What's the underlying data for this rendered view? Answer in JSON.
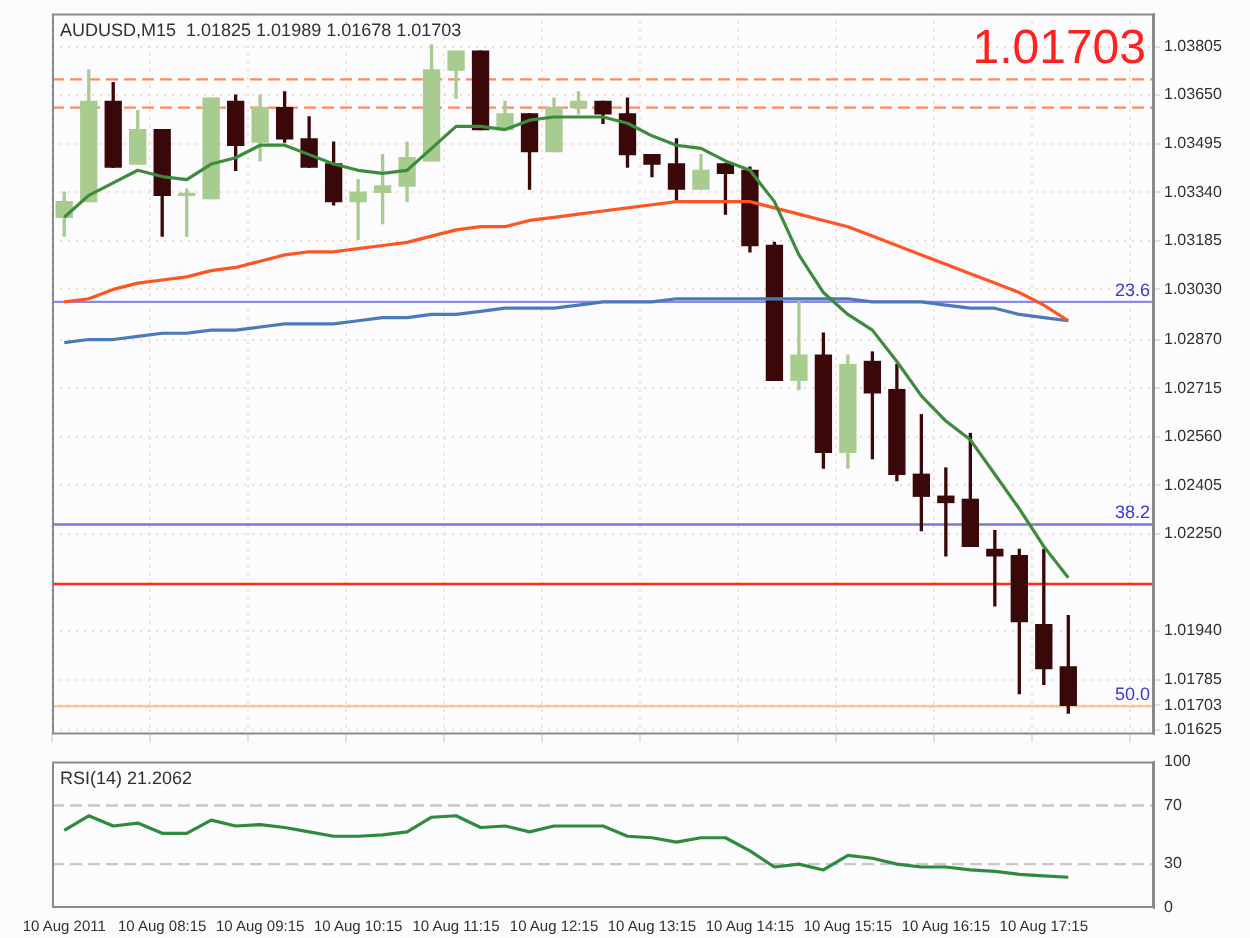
{
  "chart_data": [
    {
      "type": "candlestick",
      "title": "AUDUSD,M15  1.01825 1.01989 1.01678 1.01703",
      "categories": [
        null,
        null,
        null,
        null,
        null,
        null,
        null,
        null,
        null,
        null,
        null,
        null,
        null,
        null,
        null,
        null,
        null,
        null,
        null,
        null,
        null,
        null,
        null,
        null,
        null,
        null,
        null,
        null,
        null,
        null,
        null,
        null,
        null,
        null,
        null,
        null,
        null,
        null,
        null,
        null,
        null,
        null
      ],
      "ohlc": [
        [
          1.0326,
          1.0334,
          1.032,
          1.0331
        ],
        [
          1.0331,
          1.0373,
          1.0331,
          1.0363
        ],
        [
          1.0363,
          1.0369,
          1.0342,
          1.0342
        ],
        [
          1.0343,
          1.036,
          1.0343,
          1.0354
        ],
        [
          1.0354,
          1.0354,
          1.032,
          1.0333
        ],
        [
          1.0333,
          1.0335,
          1.032,
          1.0333
        ],
        [
          1.0332,
          1.0364,
          1.0332,
          1.0364
        ],
        [
          1.0363,
          1.0365,
          1.0341,
          1.0349
        ],
        [
          1.035,
          1.0365,
          1.0344,
          1.0361
        ],
        [
          1.0361,
          1.0366,
          1.035,
          1.0351
        ],
        [
          1.0351,
          1.0358,
          1.0342,
          1.0342
        ],
        [
          1.0343,
          1.035,
          1.033,
          1.0331
        ],
        [
          1.0331,
          1.0338,
          1.0319,
          1.0334
        ],
        [
          1.0334,
          1.0346,
          1.0324,
          1.0336
        ],
        [
          1.0336,
          1.035,
          1.0331,
          1.0345
        ],
        [
          1.0344,
          1.0381,
          1.0344,
          1.0373
        ],
        [
          1.0373,
          1.0379,
          1.0364,
          1.0379
        ],
        [
          1.0379,
          1.0379,
          1.0354,
          1.0354
        ],
        [
          1.0354,
          1.0363,
          1.0354,
          1.0359
        ],
        [
          1.0359,
          1.0359,
          1.0335,
          1.0347
        ],
        [
          1.0347,
          1.0364,
          1.0347,
          1.0361
        ],
        [
          1.0361,
          1.0366,
          1.0359,
          1.0363
        ],
        [
          1.0363,
          1.0363,
          1.0356,
          1.0359
        ],
        [
          1.0359,
          1.0364,
          1.0342,
          1.0346
        ],
        [
          1.0346,
          1.0346,
          1.0339,
          1.0343
        ],
        [
          1.0343,
          1.0351,
          1.0331,
          1.0335
        ],
        [
          1.0335,
          1.0346,
          1.0335,
          1.0341
        ],
        [
          1.0343,
          1.0343,
          1.0327,
          1.034
        ],
        [
          1.0341,
          1.0342,
          1.0315,
          1.0317
        ],
        [
          1.0317,
          1.0318,
          1.0274,
          1.0274
        ],
        [
          1.0274,
          1.0299,
          1.0271,
          1.0282
        ],
        [
          1.0282,
          1.0289,
          1.0246,
          1.0251
        ],
        [
          1.0251,
          1.0282,
          1.0246,
          1.0279
        ],
        [
          1.028,
          1.0283,
          1.0249,
          1.027
        ],
        [
          1.0271,
          1.0279,
          1.0242,
          1.0244
        ],
        [
          1.0244,
          1.0263,
          1.0226,
          1.0237
        ],
        [
          1.0237,
          1.0246,
          1.0218,
          1.0235
        ],
        [
          1.0236,
          1.0257,
          1.0221,
          1.0221
        ],
        [
          1.022,
          1.0226,
          1.0202,
          1.0218
        ],
        [
          1.0218,
          1.022,
          1.0174,
          1.0197
        ],
        [
          1.0196,
          1.022,
          1.0177,
          1.0182
        ],
        [
          1.01825,
          1.01989,
          1.01678,
          1.01703
        ]
      ],
      "colors": [
        "#a8cc90",
        "#a8cc90",
        "#3a0808",
        "#a8cc90",
        "#3a0808",
        "#a8cc90",
        "#a8cc90",
        "#3a0808",
        "#a8cc90",
        "#3a0808",
        "#3a0808",
        "#3a0808",
        "#a8cc90",
        "#a8cc90",
        "#a8cc90",
        "#a8cc90",
        "#a8cc90",
        "#3a0808",
        "#a8cc90",
        "#3a0808",
        "#a8cc90",
        "#a8cc90",
        "#3a0808",
        "#3a0808",
        "#3a0808",
        "#3a0808",
        "#a8cc90",
        "#3a0808",
        "#3a0808",
        "#3a0808",
        "#a8cc90",
        "#3a0808",
        "#a8cc90",
        "#3a0808",
        "#3a0808",
        "#3a0808",
        "#3a0808",
        "#3a0808",
        "#3a0808",
        "#3a0808",
        "#3a0808",
        "#3a0808"
      ],
      "series": [
        {
          "type": "line",
          "color": "#3c8c3c",
          "values": [
            1.0326,
            1.0333,
            1.0337,
            1.0341,
            1.0339,
            1.0338,
            1.0343,
            1.0345,
            1.0349,
            1.0349,
            1.0346,
            1.0343,
            1.0341,
            1.034,
            1.0341,
            1.0348,
            1.0355,
            1.0355,
            1.0354,
            1.0357,
            1.0358,
            1.0358,
            1.0358,
            1.0356,
            1.0352,
            1.0349,
            1.0348,
            1.0344,
            1.0341,
            1.0331,
            1.0314,
            1.0302,
            1.0295,
            1.029,
            1.028,
            1.0269,
            1.0261,
            1.0255,
            1.0244,
            1.0233,
            1.0221,
            1.0211
          ]
        },
        {
          "type": "line",
          "color": "#ff5522",
          "values": [
            1.0299,
            1.03,
            1.0303,
            1.0305,
            1.0306,
            1.0307,
            1.0309,
            1.031,
            1.0312,
            1.0314,
            1.0315,
            1.0315,
            1.0316,
            1.0317,
            1.0318,
            1.032,
            1.0322,
            1.0323,
            1.0323,
            1.0325,
            1.0326,
            1.0327,
            1.0328,
            1.0329,
            1.033,
            1.0331,
            1.0331,
            1.0331,
            1.0331,
            1.0329,
            1.0327,
            1.0325,
            1.0323,
            1.032,
            1.0317,
            1.0314,
            1.0311,
            1.0308,
            1.0305,
            1.0302,
            1.0298,
            1.0293
          ]
        },
        {
          "type": "line",
          "color": "#4a7ab8",
          "values": [
            1.0286,
            1.0287,
            1.0287,
            1.0288,
            1.0289,
            1.0289,
            1.029,
            1.029,
            1.0291,
            1.0292,
            1.0292,
            1.0292,
            1.0293,
            1.0294,
            1.0294,
            1.0295,
            1.0295,
            1.0296,
            1.0297,
            1.0297,
            1.0297,
            1.0298,
            1.0299,
            1.0299,
            1.0299,
            1.03,
            1.03,
            1.03,
            1.03,
            1.03,
            1.03,
            1.03,
            1.03,
            1.0299,
            1.0299,
            1.0299,
            1.0298,
            1.0297,
            1.0297,
            1.0295,
            1.0294,
            1.0293
          ]
        }
      ],
      "ylim": [
        1.0161,
        1.0391
      ],
      "yticks": [
        1.03805,
        {
          "value": 1.0365,
          "label": "1.03650"
        },
        1.01703,
        1.03495,
        {
          "value": 1.0334,
          "label": "1.03340"
        },
        1.03185,
        {
          "value": 1.0303,
          "label": "1.03030"
        },
        {
          "value": 1.0287,
          "label": "1.02870"
        },
        1.02715,
        {
          "value": 1.0256,
          "label": "1.02560"
        },
        1.02405,
        {
          "value": 1.0225,
          "label": "1.02250"
        },
        {
          "value": 1.0194,
          "label": "1.01940"
        },
        1.01785,
        1.01625
      ],
      "tick_labels": "y",
      "grid": true,
      "ref_lines": [
        {
          "axis": "y",
          "value": 1.037,
          "color": "#ff8a5a",
          "line_style": "dashed"
        },
        {
          "axis": "y",
          "value": 1.0361,
          "color": "#ff8a5a",
          "line_style": "dashed"
        },
        {
          "axis": "y",
          "value": 1.0299,
          "color": "#8a88e8"
        },
        {
          "axis": "y",
          "value": 1.0228,
          "color": "#7a78e0"
        },
        {
          "axis": "y",
          "value": 1.0209,
          "color": "#ff2a1a"
        },
        {
          "axis": "y",
          "value": 1.017,
          "color": "#f4c890"
        }
      ],
      "annotations": [
        "1.01703",
        {
          "text": "23.6",
          "y": 1.0299
        },
        {
          "text": "38.2",
          "y": 1.0228
        },
        {
          "text": "50.0",
          "y": 1.017
        }
      ]
    },
    {
      "type": "line",
      "title": "RSI(14) 21.2062",
      "categories": [
        "10 Aug 2011",
        null,
        null,
        null,
        "10 Aug 08:15",
        null,
        null,
        null,
        "10 Aug 09:15",
        null,
        null,
        null,
        "10 Aug 10:15",
        null,
        null,
        null,
        "10 Aug 11:15",
        null,
        null,
        null,
        "10 Aug 12:15",
        null,
        null,
        null,
        "10 Aug 13:15",
        null,
        null,
        null,
        "10 Aug 14:15",
        null,
        null,
        null,
        "10 Aug 15:15",
        null,
        null,
        null,
        "10 Aug 16:15",
        null,
        null,
        null,
        "10 Aug 17:15",
        null
      ],
      "color": "#2e8b3e",
      "values": [
        53,
        63,
        56,
        58,
        51,
        51,
        60,
        56,
        57,
        55,
        52,
        49,
        49,
        50,
        52,
        62,
        63,
        55,
        56,
        52,
        56,
        56,
        56,
        49,
        48,
        45,
        48,
        48,
        39,
        28,
        30,
        26,
        36,
        34,
        30,
        28,
        28,
        26,
        25,
        23,
        22,
        21
      ],
      "ylim": [
        0,
        100
      ],
      "yticks": [
        0,
        30,
        70,
        100
      ],
      "ref_lines": [
        {
          "axis": "y",
          "value": 30,
          "color": "#c8c8c8",
          "line_style": "dashed"
        },
        {
          "axis": "y",
          "value": 70,
          "color": "#c8c8c8",
          "line_style": "dashed"
        }
      ]
    }
  ]
}
